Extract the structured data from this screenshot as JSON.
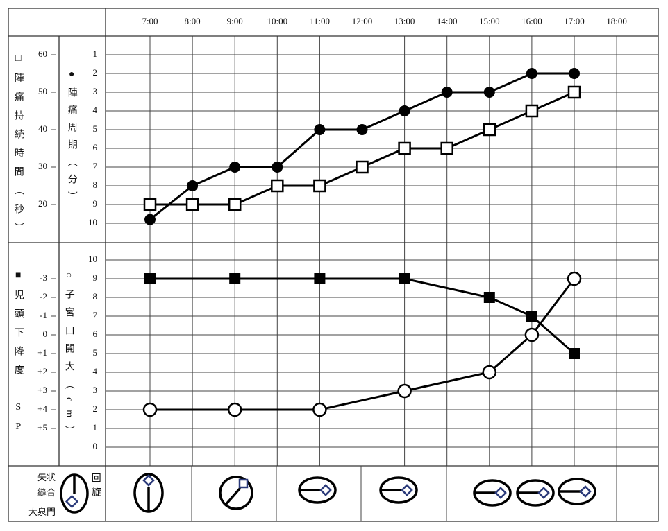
{
  "chart_data": [
    {
      "type": "line",
      "categories": [
        "7:00",
        "8:00",
        "9:00",
        "10:00",
        "11:00",
        "12:00",
        "13:00",
        "14:00",
        "15:00",
        "16:00",
        "17:00",
        "18:00"
      ],
      "ylabel": "●陣痛周期（分）",
      "y2label": "□陣痛持続時間（秒）",
      "ylim": [
        11,
        0
      ],
      "yticks": [
        1,
        2,
        3,
        4,
        5,
        6,
        7,
        8,
        9,
        10
      ],
      "y2lim": [
        10,
        65
      ],
      "y2ticks": [
        60,
        50,
        40,
        30,
        20
      ],
      "grid": true,
      "series": [
        {
          "marker": "filled-circle",
          "color": "#000000",
          "values": [
            9.8,
            8,
            7,
            7,
            5,
            5,
            4,
            3,
            3,
            2,
            2,
            null
          ]
        },
        {
          "marker": "open-square",
          "color": "#000000",
          "axis": "y2",
          "values": [
            20,
            20,
            20,
            25,
            25,
            30,
            35,
            35,
            40,
            45,
            50,
            null
          ]
        }
      ]
    },
    {
      "type": "line",
      "ylabel": "○子宮口開大（cm）",
      "y2label": "■児頭下降度　SP",
      "ylim": [
        -1,
        11
      ],
      "yticks": [
        0,
        1,
        2,
        3,
        4,
        5,
        6,
        7,
        8,
        9,
        10
      ],
      "y2lim": [
        7,
        -5
      ],
      "y2ticks": [
        -3,
        -2,
        -1,
        0,
        {
          "value": 1,
          "label": "+1"
        },
        {
          "value": 2,
          "label": "+2"
        },
        {
          "value": 3,
          "label": "+3"
        },
        {
          "value": 4,
          "label": "+4"
        },
        {
          "value": 5,
          "label": "+5"
        }
      ],
      "grid": true,
      "series": [
        {
          "marker": "filled-square",
          "color": "#000000",
          "axis": "y2",
          "x": [
            "7:00",
            "9:00",
            "11:00",
            "13:00",
            "15:00",
            "16:00",
            "17:00"
          ],
          "values": [
            -3,
            -3,
            -3,
            -3,
            -2,
            -1,
            1
          ]
        },
        {
          "marker": "open-circle",
          "color": "#000000",
          "x": [
            "7:00",
            "9:00",
            "11:00",
            "13:00",
            "15:00",
            "16:00",
            "17:00"
          ],
          "values": [
            2,
            2,
            2,
            3,
            4,
            6,
            9
          ]
        }
      ]
    }
  ],
  "rotation": {
    "suture_labels": [
      "矢状",
      "縫合",
      "大泉門"
    ],
    "label": "回旋"
  }
}
